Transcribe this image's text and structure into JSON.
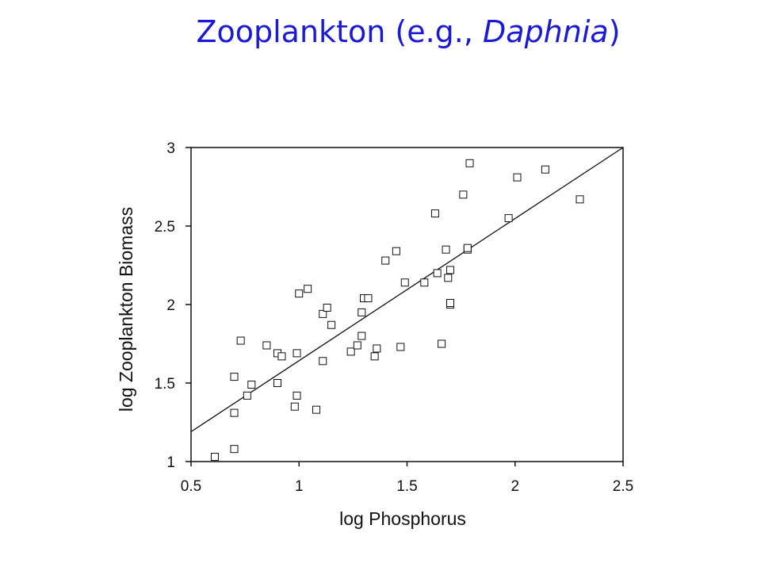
{
  "title": {
    "main": "Zooplankton (e.g., ",
    "italic": "Daphnia",
    "close": ")"
  },
  "colors": {
    "title": "#1a1ad6",
    "axes": "#111111"
  },
  "chart_data": {
    "type": "scatter",
    "xlabel": "log Phosphorus",
    "ylabel": "log Zooplankton Biomass",
    "xlim": [
      0.5,
      2.5
    ],
    "ylim": [
      1,
      3
    ],
    "xticks": [
      "0.5",
      "1",
      "1.5",
      "2",
      "2.5"
    ],
    "yticks": [
      "1",
      "1.5",
      "2",
      "2.5",
      "3"
    ],
    "grid": false,
    "marker": "open-square",
    "fit_line": {
      "x": [
        0.5,
        2.5
      ],
      "y": [
        1.19,
        3.0
      ]
    },
    "points": [
      [
        0.61,
        1.03
      ],
      [
        0.7,
        1.08
      ],
      [
        0.7,
        1.31
      ],
      [
        0.7,
        1.54
      ],
      [
        0.73,
        1.77
      ],
      [
        0.76,
        1.42
      ],
      [
        0.78,
        1.49
      ],
      [
        0.85,
        1.74
      ],
      [
        0.9,
        1.5
      ],
      [
        0.9,
        1.69
      ],
      [
        0.92,
        1.67
      ],
      [
        0.98,
        1.35
      ],
      [
        0.99,
        1.42
      ],
      [
        0.99,
        1.69
      ],
      [
        1.0,
        2.07
      ],
      [
        1.04,
        2.1
      ],
      [
        1.08,
        1.33
      ],
      [
        1.11,
        1.64
      ],
      [
        1.11,
        1.94
      ],
      [
        1.13,
        1.98
      ],
      [
        1.15,
        1.87
      ],
      [
        1.24,
        1.7
      ],
      [
        1.27,
        1.74
      ],
      [
        1.29,
        1.8
      ],
      [
        1.29,
        1.95
      ],
      [
        1.3,
        2.04
      ],
      [
        1.32,
        2.04
      ],
      [
        1.35,
        1.67
      ],
      [
        1.36,
        1.72
      ],
      [
        1.4,
        2.28
      ],
      [
        1.45,
        2.34
      ],
      [
        1.47,
        1.73
      ],
      [
        1.49,
        2.14
      ],
      [
        1.58,
        2.14
      ],
      [
        1.63,
        2.58
      ],
      [
        1.64,
        2.2
      ],
      [
        1.66,
        1.75
      ],
      [
        1.68,
        2.35
      ],
      [
        1.69,
        2.17
      ],
      [
        1.7,
        2.22
      ],
      [
        1.7,
        2.0
      ],
      [
        1.7,
        2.01
      ],
      [
        1.76,
        2.7
      ],
      [
        1.78,
        2.35
      ],
      [
        1.78,
        2.36
      ],
      [
        1.79,
        2.9
      ],
      [
        1.97,
        2.55
      ],
      [
        2.01,
        2.81
      ],
      [
        2.14,
        2.86
      ],
      [
        2.3,
        2.67
      ]
    ]
  }
}
